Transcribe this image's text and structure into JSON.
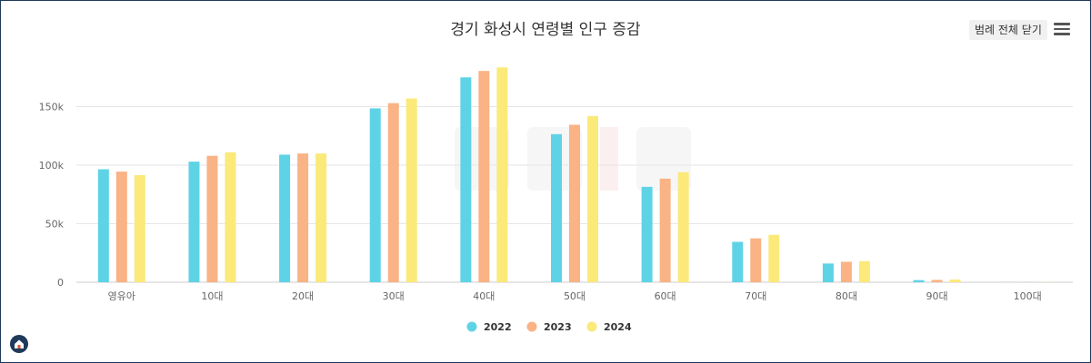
{
  "header": {
    "title": "경기 화성시 연령별 인구 증감",
    "legend_toggle_label": "범례 전체 닫기",
    "menu_icon": "hamburger-menu-icon",
    "home_icon": "home-icon"
  },
  "chart_data": {
    "type": "bar",
    "title": "경기 화성시 연령별 인구 증감",
    "xlabel": "",
    "ylabel": "",
    "categories": [
      "영유아",
      "10대",
      "20대",
      "30대",
      "40대",
      "50대",
      "60대",
      "70대",
      "80대",
      "90대",
      "100대"
    ],
    "yticks": [
      "0",
      "50k",
      "100k",
      "150k"
    ],
    "ylim": [
      0,
      190000
    ],
    "grid": true,
    "legend_position": "bottom",
    "series": [
      {
        "name": "2022",
        "color": "#5ed3e6",
        "values": [
          96500,
          103000,
          109000,
          148500,
          175000,
          126500,
          81500,
          34500,
          16000,
          1800,
          50
        ]
      },
      {
        "name": "2023",
        "color": "#f9b385",
        "values": [
          94500,
          108000,
          110000,
          153000,
          180500,
          134500,
          88500,
          37500,
          17500,
          2000,
          60
        ]
      },
      {
        "name": "2024",
        "color": "#fbe97a",
        "values": [
          91500,
          111000,
          110000,
          157000,
          183500,
          142000,
          94000,
          40500,
          18000,
          2300,
          70
        ]
      }
    ]
  }
}
